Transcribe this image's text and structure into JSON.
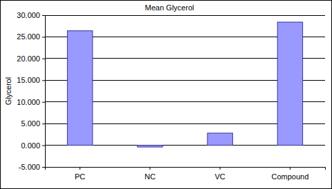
{
  "chart_data": {
    "type": "bar",
    "title": "Mean Glycerol",
    "y_label": "Glycerol",
    "categories": [
      "PC",
      "NC",
      "VC",
      "Compound"
    ],
    "values": [
      26.4,
      -0.4,
      2.8,
      28.4
    ],
    "color": "#9999ff",
    "ylim": [
      -5,
      30
    ],
    "yticks": [
      {
        "value": -5,
        "label": "-5.000"
      },
      {
        "value": 0,
        "label": "0.000"
      },
      {
        "value": 5,
        "label": "5.000"
      },
      {
        "value": 10,
        "label": "10.000"
      },
      {
        "value": 15,
        "label": "15.000"
      },
      {
        "value": 20,
        "label": "20.000"
      },
      {
        "value": 25,
        "label": "25.000"
      },
      {
        "value": 30,
        "label": "30.000"
      }
    ],
    "grid": true
  }
}
